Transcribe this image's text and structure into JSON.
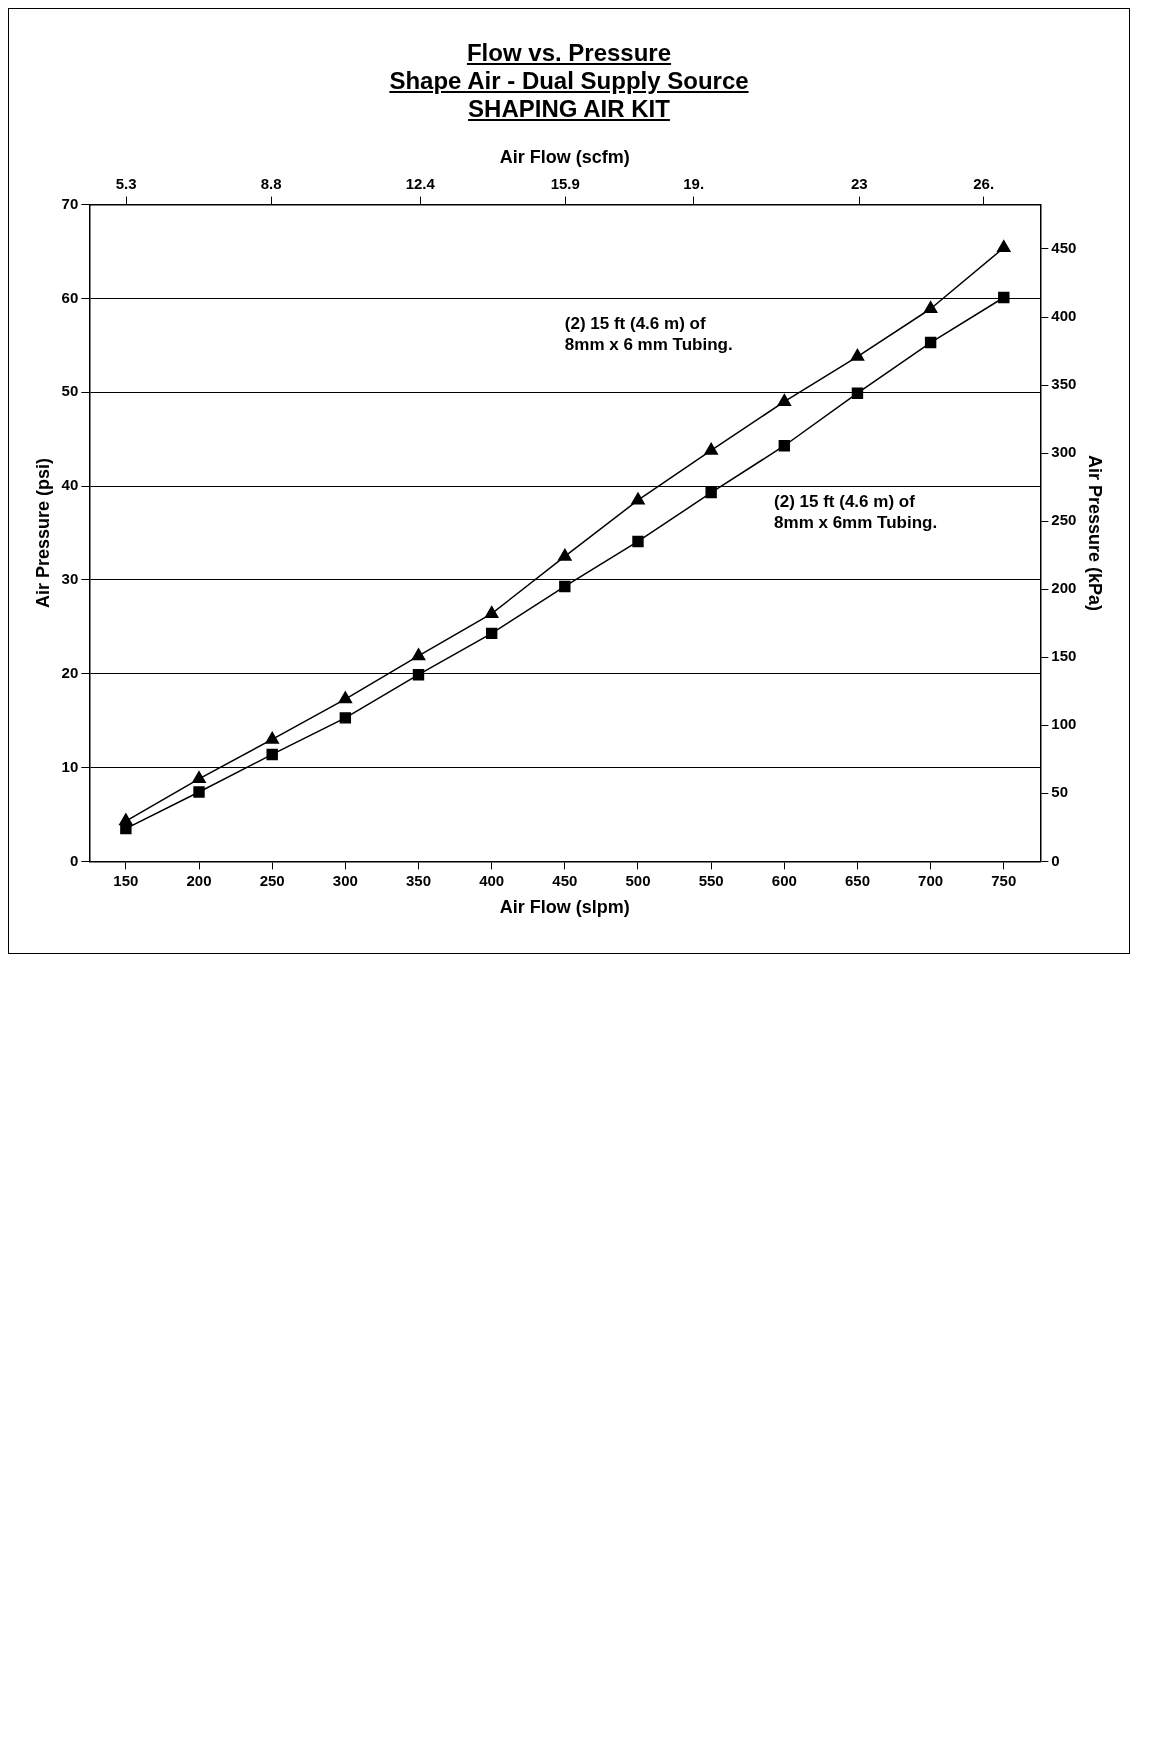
{
  "chart_data": {
    "type": "line",
    "title": "Flow vs. Pressure",
    "subtitle": "Shape Air - Dual Supply Source\nSHAPING AIR KIT",
    "xlabel": "Air Flow (slpm)",
    "ylabel": "Air Pressure (psi)",
    "y2label": "Air Pressure (kPa)",
    "x2label": "Air Flow (scfm)",
    "x": [
      150,
      200,
      250,
      300,
      350,
      400,
      450,
      500,
      550,
      600,
      650,
      700,
      750
    ],
    "series": [
      {
        "color": "#000000",
        "marker": "square",
        "values": [
          3.5,
          7.4,
          11.4,
          15.3,
          19.9,
          24.3,
          29.3,
          34.1,
          39.3,
          44.3,
          49.9,
          55.3,
          60.1
        ]
      },
      {
        "color": "#000000",
        "marker": "triangle",
        "values": [
          4.3,
          8.8,
          13.0,
          17.3,
          21.9,
          26.4,
          32.5,
          38.5,
          43.8,
          49.0,
          53.8,
          58.9,
          65.4
        ]
      }
    ],
    "xlim": [
      125,
      775
    ],
    "xticks": [
      150,
      200,
      250,
      300,
      350,
      400,
      450,
      500,
      550,
      600,
      650,
      700,
      750
    ],
    "x2lim": [
      4.41,
      27.37
    ],
    "x2ticks": [
      5.3,
      8.8,
      12.4,
      15.9,
      {
        "value": 19,
        "label": "19."
      },
      23.0,
      {
        "value": 26,
        "label": "26."
      }
    ],
    "ylim": [
      0,
      70
    ],
    "yticks": [
      0,
      10,
      20,
      30,
      40,
      50,
      60,
      70
    ],
    "y2lim": [
      0,
      482.6
    ],
    "y2ticks": [
      0,
      50,
      100,
      150,
      200,
      250,
      300,
      350,
      400,
      450
    ],
    "grid": "y",
    "legend": false,
    "line_style": "solid",
    "annotations": [
      "(2) 15 ft (4.6 m) of 8mm x 6 mm Tubing.",
      "(2) 15 ft (4.6 m) of 8mm x 6mm Tubing."
    ]
  }
}
